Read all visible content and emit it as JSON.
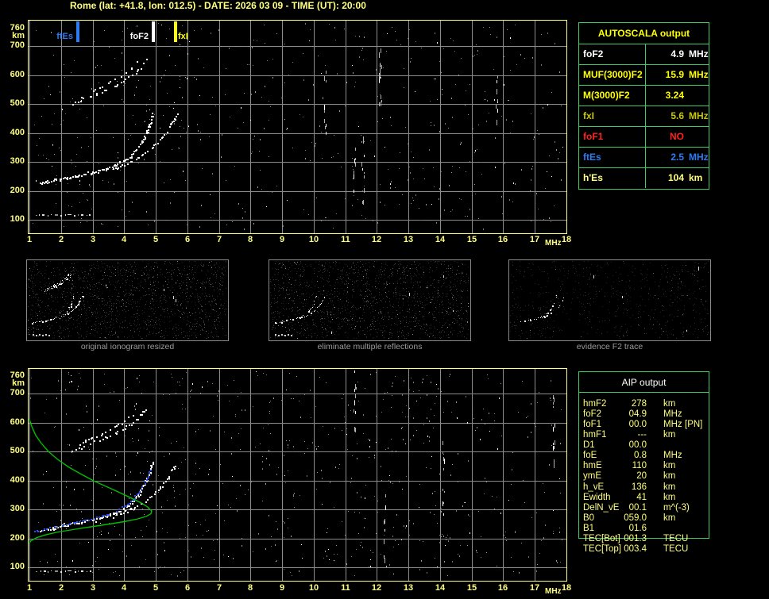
{
  "title": "Rome (lat: +41.8, lon: 012.5) - DATE: 2026 03 09 - TIME (UT): 20:00",
  "palette": {
    "background": "#000000",
    "frame_yellow": "#ffff80",
    "grid_gray": "#8c8c8c",
    "table_border_green": "#3ecf62",
    "profile_green": "#00be00",
    "restored_blue": "#2850f0",
    "caption_gray": "#9a9a9a",
    "bright_yellow": "#ffff00",
    "accent_blue": "#2e7cf2",
    "accent_red": "#ff2222"
  },
  "autoscala_table": {
    "header": "AUTOSCALA output",
    "rows": [
      {
        "label": "foF2",
        "value": "4.9",
        "unit": "MHz",
        "color": "#ffffff"
      },
      {
        "label": "MUF(3000)F2",
        "value": "15.9",
        "unit": "MHz",
        "color": "#ffff00"
      },
      {
        "label": "M(3000)F2",
        "value": "3.24",
        "unit": "",
        "color": "#ffff00"
      },
      {
        "label": "fxI",
        "value": "5.6",
        "unit": "MHz",
        "color": "#c8c800"
      },
      {
        "label": "foF1",
        "value": "NO",
        "unit": "",
        "color": "#ff2222"
      },
      {
        "label": "ftEs",
        "value": "2.5",
        "unit": "MHz",
        "color": "#2e7cf2"
      },
      {
        "label": "h'Es",
        "value": "104",
        "unit": "km",
        "color": "#ffff80"
      }
    ]
  },
  "aip_table": {
    "header": "AIP output",
    "rows": [
      {
        "name": "hmF2",
        "value": "278",
        "unit": "km",
        "note": ""
      },
      {
        "name": "foF2",
        "value": "04.9",
        "unit": "MHz",
        "note": ""
      },
      {
        "name": "foF1",
        "value": "00.0",
        "unit": "MHz",
        "note": "[PN]"
      },
      {
        "name": "hmF1",
        "value": "---",
        "unit": "km",
        "note": ""
      },
      {
        "name": "D1",
        "value": "00.0",
        "unit": "",
        "note": ""
      },
      {
        "name": "foE",
        "value": "0.8",
        "unit": "MHz",
        "note": ""
      },
      {
        "name": "hmE",
        "value": "110",
        "unit": "km",
        "note": ""
      },
      {
        "name": "ymE",
        "value": "20",
        "unit": "km",
        "note": ""
      },
      {
        "name": "h_vE",
        "value": "136",
        "unit": "km",
        "note": ""
      },
      {
        "name": "Ewidth",
        "value": "41",
        "unit": "km",
        "note": ""
      },
      {
        "name": "DelN_vE",
        "value": "00.1",
        "unit": "m^(-3)",
        "note": ""
      },
      {
        "name": "B0",
        "value": "059.0",
        "unit": "km",
        "note": ""
      },
      {
        "name": "B1",
        "value": "01.6",
        "unit": "",
        "note": ""
      },
      {
        "name": "TEC[Bot]",
        "value": "001.3",
        "unit": "TECU",
        "note": ""
      },
      {
        "name": "TEC[Top]",
        "value": "003.4",
        "unit": "TECU",
        "note": ""
      }
    ]
  },
  "chart_data": [
    {
      "id": "ionogram-top",
      "type": "scatter",
      "title": "",
      "xlabel": "MHz",
      "ylabel": "km",
      "xlim": [
        1,
        18
      ],
      "ylim": [
        100,
        760
      ],
      "grid": true,
      "x_ticks": [
        1,
        2,
        3,
        4,
        5,
        6,
        7,
        8,
        9,
        10,
        11,
        12,
        13,
        14,
        15,
        16,
        17,
        18
      ],
      "y_ticks": [
        760,
        700,
        600,
        500,
        400,
        300,
        200,
        100
      ],
      "legend_markers": [
        {
          "name": "ftEs",
          "mhz": 2.5,
          "color": "#2e7cf2"
        },
        {
          "name": "foF2",
          "mhz": 4.9,
          "color": "#ffffff"
        },
        {
          "name": "fxI",
          "mhz": 5.6,
          "color": "#ffff00"
        }
      ],
      "traces": {
        "f2_ordinary": [
          [
            1.35,
            228
          ],
          [
            1.6,
            234
          ],
          [
            1.9,
            241
          ],
          [
            2.2,
            248
          ],
          [
            2.55,
            255
          ],
          [
            2.9,
            263
          ],
          [
            3.2,
            271
          ],
          [
            3.5,
            281
          ],
          [
            3.75,
            292
          ],
          [
            4.0,
            306
          ],
          [
            4.2,
            323
          ],
          [
            4.4,
            346
          ],
          [
            4.55,
            371
          ],
          [
            4.68,
            399
          ],
          [
            4.78,
            426
          ],
          [
            4.86,
            451
          ],
          [
            4.92,
            473
          ]
        ],
        "f2_extraordinary": [
          [
            3.65,
            276
          ],
          [
            3.9,
            287
          ],
          [
            4.15,
            299
          ],
          [
            4.4,
            313
          ],
          [
            4.65,
            330
          ],
          [
            4.85,
            348
          ],
          [
            5.05,
            369
          ],
          [
            5.25,
            393
          ],
          [
            5.4,
            416
          ],
          [
            5.52,
            439
          ],
          [
            5.62,
            459
          ],
          [
            5.67,
            470
          ]
        ],
        "second_hop_a": [
          [
            2.35,
            502
          ],
          [
            2.6,
            514
          ],
          [
            2.9,
            527
          ],
          [
            3.2,
            540
          ],
          [
            3.5,
            554
          ],
          [
            3.8,
            569
          ],
          [
            4.05,
            586
          ],
          [
            4.3,
            605
          ],
          [
            4.5,
            625
          ],
          [
            4.65,
            646
          ],
          [
            4.73,
            660
          ]
        ],
        "second_hop_b": [
          [
            2.6,
            529
          ],
          [
            2.85,
            542
          ],
          [
            3.15,
            556
          ],
          [
            3.45,
            571
          ],
          [
            3.7,
            586
          ],
          [
            3.95,
            603
          ],
          [
            4.2,
            623
          ],
          [
            4.4,
            646
          ],
          [
            4.52,
            662
          ]
        ]
      },
      "interference_mhz": [
        10.35,
        11.3,
        11.55,
        12.1,
        15.8
      ]
    },
    {
      "id": "ionogram-bottom",
      "type": "scatter",
      "title": "",
      "xlabel": "MHz",
      "ylabel": "km",
      "xlim": [
        1,
        18
      ],
      "ylim": [
        100,
        760
      ],
      "grid": true,
      "x_ticks": [
        1,
        2,
        3,
        4,
        5,
        6,
        7,
        8,
        9,
        10,
        11,
        12,
        13,
        14,
        15,
        16,
        17,
        18
      ],
      "y_ticks": [
        760,
        700,
        600,
        500,
        400,
        300,
        200,
        100
      ],
      "echo_traces": "same white traces as ionogram-top",
      "profile_green": [
        [
          1.0,
          612
        ],
        [
          1.08,
          585
        ],
        [
          1.2,
          556
        ],
        [
          1.38,
          528
        ],
        [
          1.6,
          500
        ],
        [
          1.9,
          472
        ],
        [
          2.25,
          446
        ],
        [
          2.65,
          421
        ],
        [
          3.05,
          398
        ],
        [
          3.5,
          376
        ],
        [
          3.9,
          356
        ],
        [
          4.25,
          338
        ],
        [
          4.55,
          322
        ],
        [
          4.75,
          308
        ],
        [
          4.87,
          295
        ],
        [
          4.85,
          285
        ],
        [
          4.7,
          276
        ],
        [
          4.42,
          267
        ],
        [
          4.0,
          258
        ],
        [
          3.5,
          249
        ],
        [
          2.95,
          240
        ],
        [
          2.4,
          231
        ],
        [
          1.9,
          222
        ],
        [
          1.5,
          212
        ],
        [
          1.22,
          202
        ],
        [
          1.05,
          192
        ],
        [
          0.99,
          183
        ]
      ],
      "restored_trace_blue": [
        [
          1.15,
          226
        ],
        [
          1.45,
          234
        ],
        [
          1.8,
          242
        ],
        [
          2.15,
          250
        ],
        [
          2.5,
          258
        ],
        [
          2.85,
          266
        ],
        [
          3.2,
          275
        ],
        [
          3.5,
          285
        ],
        [
          3.75,
          296
        ],
        [
          4.0,
          312
        ],
        [
          4.2,
          329
        ],
        [
          4.4,
          352
        ],
        [
          4.55,
          377
        ],
        [
          4.68,
          403
        ],
        [
          4.78,
          430
        ],
        [
          4.85,
          440
        ]
      ],
      "interference_mhz": [
        11.3,
        12.25,
        14.1,
        17.6
      ]
    },
    {
      "id": "panel-original",
      "type": "scatter",
      "caption": "original ionogram resized",
      "content": [
        "second_hop_a",
        "second_hop_b",
        "f2_ordinary",
        "f2_extraordinary"
      ]
    },
    {
      "id": "panel-clean",
      "type": "scatter",
      "caption": "eliminate multiple reflections",
      "content": [
        "f2_ordinary",
        "f2_extraordinary"
      ]
    },
    {
      "id": "panel-evidence",
      "type": "scatter",
      "caption": "evidence F2 trace",
      "content": [
        "f2_ordinary",
        "f2_extraordinary"
      ]
    }
  ]
}
